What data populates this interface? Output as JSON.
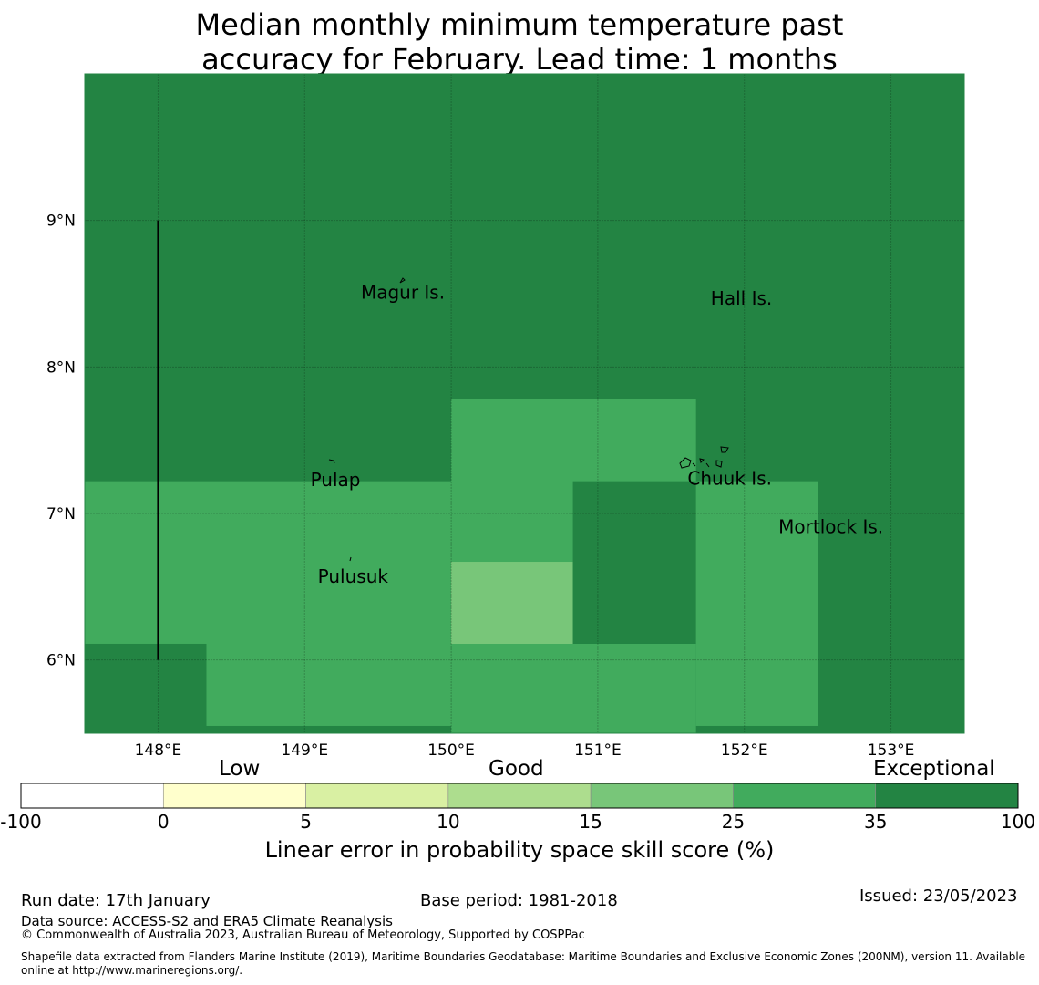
{
  "title": {
    "line1": "Median monthly minimum temperature past",
    "line2": "accuracy for February. Lead time: 1 months"
  },
  "map": {
    "lon_range": [
      147.5,
      153.5
    ],
    "lat_range": [
      5.5,
      10.0
    ],
    "x_ticks": [
      {
        "value": 148,
        "label": "148°E"
      },
      {
        "value": 149,
        "label": "149°E"
      },
      {
        "value": 150,
        "label": "150°E"
      },
      {
        "value": 151,
        "label": "151°E"
      },
      {
        "value": 152,
        "label": "152°E"
      },
      {
        "value": 153,
        "label": "153°E"
      }
    ],
    "y_ticks": [
      {
        "value": 9,
        "label": "9°N"
      },
      {
        "value": 8,
        "label": "8°N"
      },
      {
        "value": 7,
        "label": "7°N"
      },
      {
        "value": 6,
        "label": "6°N"
      }
    ],
    "background_color": "#238443",
    "regions": [
      {
        "name": "mid-green-west",
        "color": "#41ab5d",
        "lon": [
          147.5,
          150.0
        ],
        "lat": [
          5.55,
          7.22
        ]
      },
      {
        "name": "dark-green-southwest",
        "color": "#238443",
        "lon": [
          147.5,
          148.33
        ],
        "lat": [
          5.5,
          6.11
        ]
      },
      {
        "name": "mid-green-center",
        "color": "#41ab5d",
        "lon": [
          150.0,
          151.67
        ],
        "lat": [
          5.5,
          7.78
        ]
      },
      {
        "name": "light-green-center",
        "color": "#78c679",
        "lon": [
          150.0,
          150.83
        ],
        "lat": [
          6.11,
          6.67
        ]
      },
      {
        "name": "dark-green-center",
        "color": "#238443",
        "lon": [
          150.83,
          151.67
        ],
        "lat": [
          6.11,
          7.22
        ]
      },
      {
        "name": "mid-green-east",
        "color": "#41ab5d",
        "lon": [
          151.67,
          152.5
        ],
        "lat": [
          5.55,
          7.22
        ]
      }
    ],
    "boundary_line": {
      "lon": 148.0,
      "lat": [
        6.0,
        9.0
      ]
    },
    "places": [
      {
        "name": "Magur Is.",
        "lon": 149.67,
        "lat": 8.5
      },
      {
        "name": "Hall Is.",
        "lon": 151.98,
        "lat": 8.46
      },
      {
        "name": "Pulap",
        "lon": 149.21,
        "lat": 7.22
      },
      {
        "name": "Chuuk Is.",
        "lon": 151.9,
        "lat": 7.23
      },
      {
        "name": "Mortlock Is.",
        "lon": 152.59,
        "lat": 6.9
      },
      {
        "name": "Pulusuk",
        "lon": 149.33,
        "lat": 6.56
      }
    ]
  },
  "colorbar": {
    "headings": {
      "low": "Low",
      "good": "Good",
      "exceptional": "Exceptional"
    },
    "ticks": [
      "-100",
      "0",
      "5",
      "10",
      "15",
      "25",
      "35",
      "100"
    ],
    "colors": [
      "#ffffff",
      "#ffffcc",
      "#d9f0a3",
      "#addd8e",
      "#78c679",
      "#41ab5d",
      "#238443"
    ],
    "label": "Linear error in probability space skill score (%)"
  },
  "footer": {
    "run_date": "Run date: 17th January",
    "base_period": "Base period: 1981-2018",
    "issued": "Issued: 23/05/2023",
    "data_source": "Data source: ACCESS-S2 and ERA5 Climate Reanalysis",
    "copyright": "© Commonwealth of Australia 2023, Australian Bureau of Meteorology, Supported by COSPPac",
    "shapefile_line1": "Shapefile data extracted from Flanders Marine Institute (2019), Maritime Boundaries Geodatabase: Maritime Boundaries and Exclusive Economic Zones (200NM), version 11. Available",
    "shapefile_line2": "online at http://www.marineregions.org/."
  }
}
